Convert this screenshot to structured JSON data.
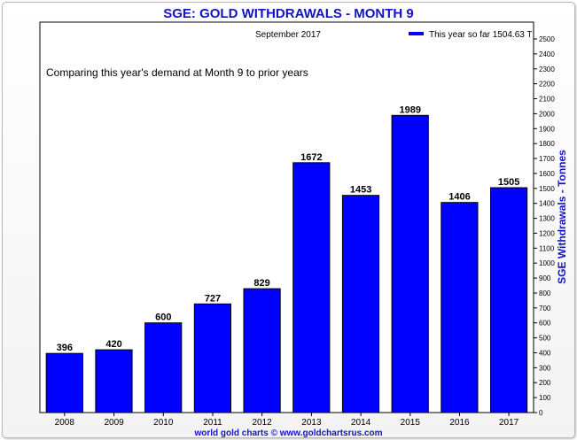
{
  "colors": {
    "bar": "#0000ff",
    "title": "#1212c8",
    "axis": "#000000"
  },
  "chart_data": {
    "type": "bar",
    "title": "SGE: GOLD WITHDRAWALS - MONTH 9",
    "subtitle": "September 2017",
    "annotation": "Comparing this year's demand at Month 9 to prior years",
    "legend": {
      "label": "This year so far 1504.63 T",
      "placement": "top-right"
    },
    "ylabel": "SGE Withdrawals - Tonnes",
    "y_axis_side": "right",
    "ylim": [
      0,
      2500
    ],
    "ytick_step": 100,
    "grid": false,
    "categories": [
      "2008",
      "2009",
      "2010",
      "2011",
      "2012",
      "2013",
      "2014",
      "2015",
      "2016",
      "2017"
    ],
    "values": [
      396,
      420,
      600,
      727,
      829,
      1672,
      1453,
      1989,
      1406,
      1505
    ],
    "data_labels": [
      "396",
      "420",
      "600",
      "727",
      "829",
      "1672",
      "1453",
      "1989",
      "1406",
      "1505"
    ],
    "source": "world gold charts © www.goldchartsrus.com"
  }
}
